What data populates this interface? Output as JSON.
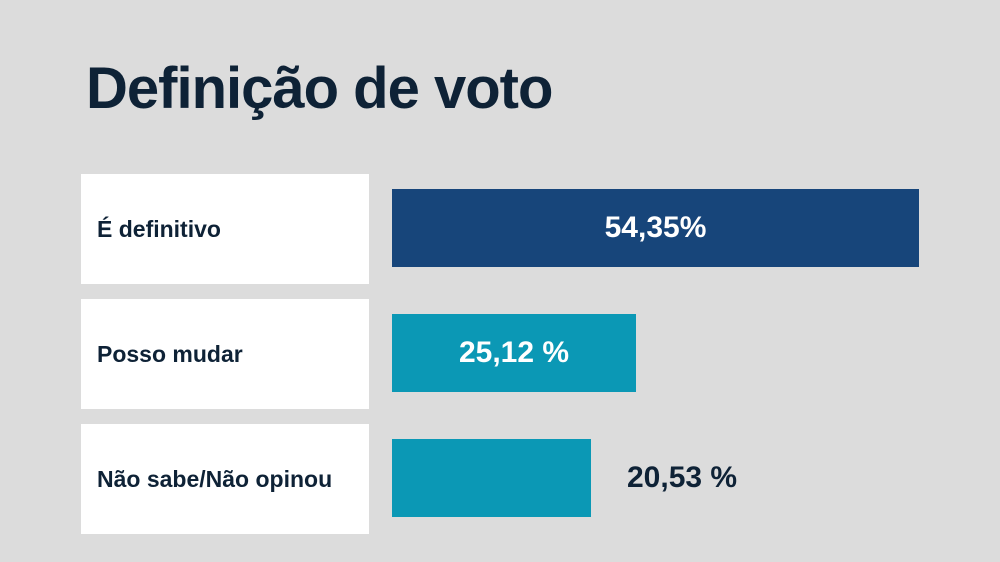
{
  "chart_data": {
    "type": "bar",
    "title": "Definição de voto",
    "categories": [
      "É definitivo",
      "Posso mudar",
      "Não sabe/Não opinou"
    ],
    "values": [
      54.35,
      25.12,
      20.53
    ],
    "value_labels": [
      "54,35%",
      "25,12 %",
      "20,53 %"
    ],
    "colors": [
      "#17457a",
      "#0b98b5",
      "#0b98b5"
    ],
    "xlabel": "",
    "ylabel": "",
    "orientation": "horizontal",
    "grid": false
  }
}
